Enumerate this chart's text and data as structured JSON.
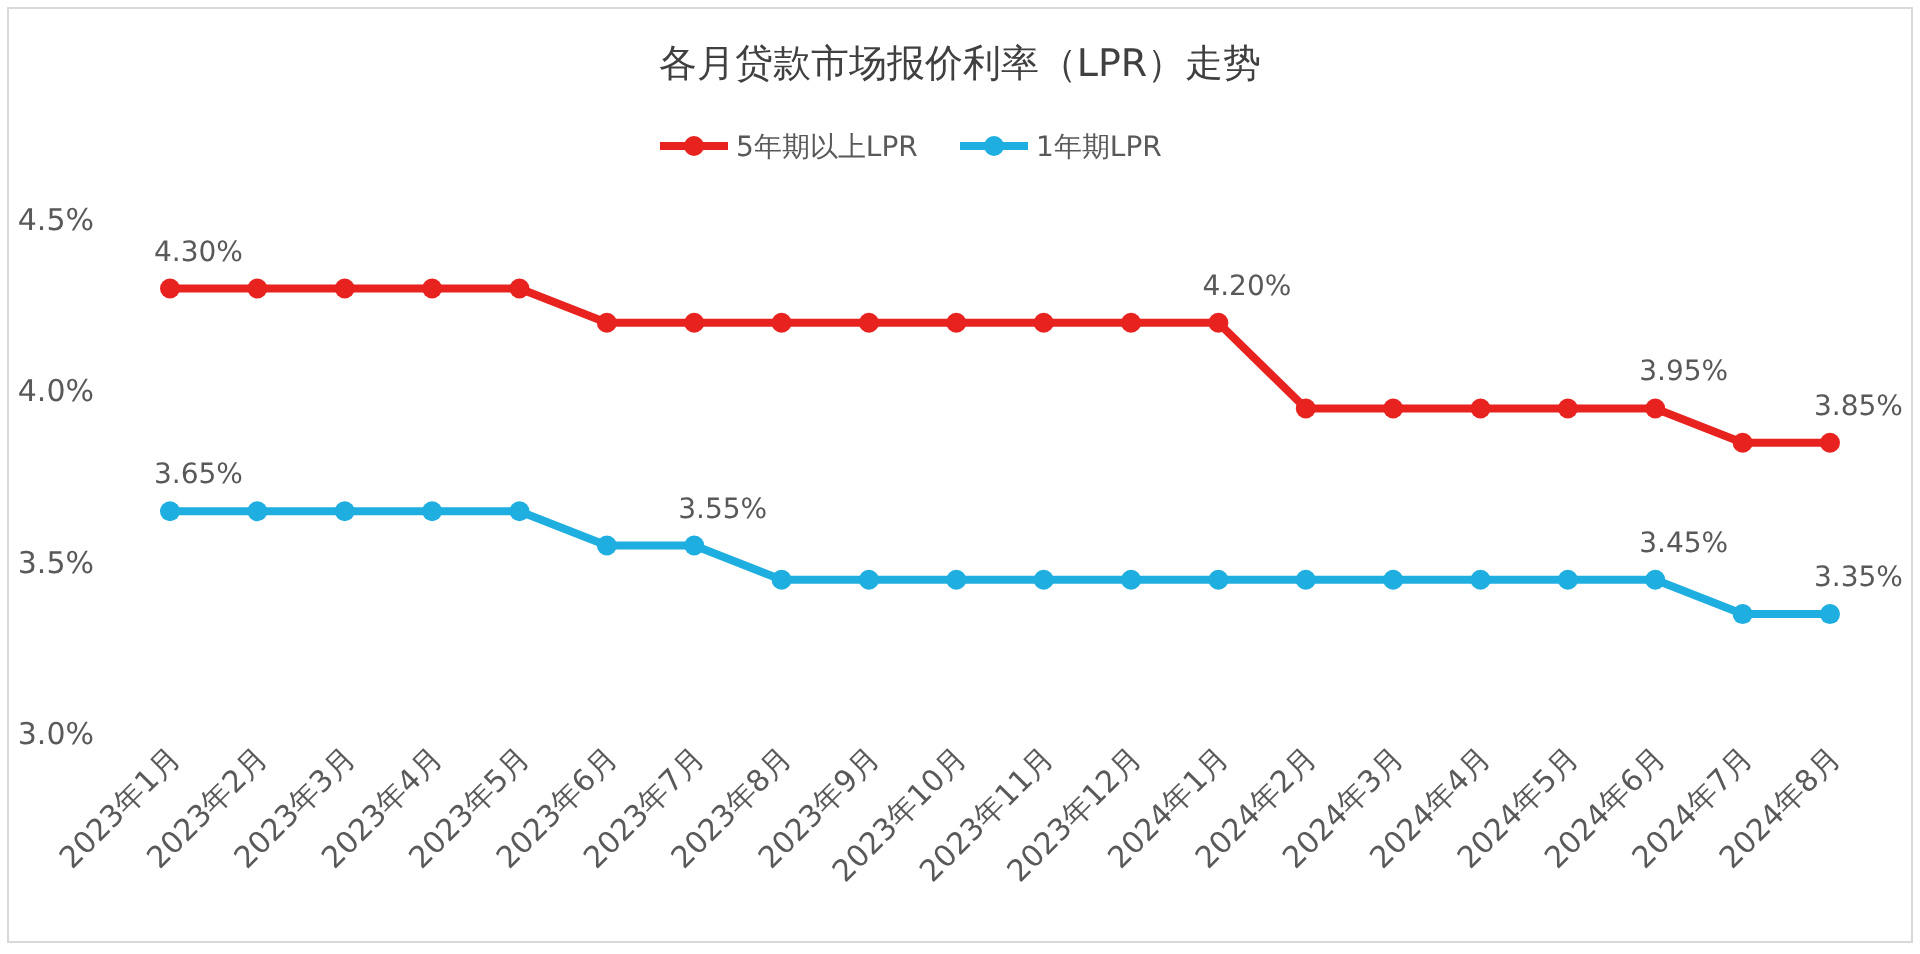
{
  "chart_data": {
    "type": "line",
    "title": "各月贷款市场报价利率（LPR）走势",
    "categories": [
      "2023年1月",
      "2023年2月",
      "2023年3月",
      "2023年4月",
      "2023年5月",
      "2023年6月",
      "2023年7月",
      "2023年8月",
      "2023年9月",
      "2023年10月",
      "2023年11月",
      "2023年12月",
      "2024年1月",
      "2024年2月",
      "2024年3月",
      "2024年4月",
      "2024年5月",
      "2024年6月",
      "2024年7月",
      "2024年8月"
    ],
    "series": [
      {
        "name": "5年期以上LPR",
        "color": "#e8231f",
        "values": [
          4.3,
          4.3,
          4.3,
          4.3,
          4.3,
          4.2,
          4.2,
          4.2,
          4.2,
          4.2,
          4.2,
          4.2,
          4.2,
          3.95,
          3.95,
          3.95,
          3.95,
          3.95,
          3.85,
          3.85
        ],
        "value_labels": [
          "4.30%",
          null,
          null,
          null,
          null,
          null,
          null,
          null,
          null,
          null,
          null,
          null,
          "4.20%",
          null,
          null,
          null,
          null,
          "3.95%",
          null,
          "3.85%"
        ]
      },
      {
        "name": "1年期LPR",
        "color": "#1eaee0",
        "values": [
          3.65,
          3.65,
          3.65,
          3.65,
          3.65,
          3.55,
          3.55,
          3.45,
          3.45,
          3.45,
          3.45,
          3.45,
          3.45,
          3.45,
          3.45,
          3.45,
          3.45,
          3.45,
          3.35,
          3.35
        ],
        "value_labels": [
          "3.65%",
          null,
          null,
          null,
          null,
          null,
          "3.55%",
          null,
          null,
          null,
          null,
          null,
          null,
          null,
          null,
          null,
          null,
          "3.45%",
          null,
          "3.35%"
        ]
      }
    ],
    "ylim": [
      3.0,
      4.5
    ],
    "yticks": [
      {
        "value": 3.0,
        "label": "3.0%"
      },
      {
        "value": 3.5,
        "label": "3.5%"
      },
      {
        "value": 4.0,
        "label": "4.0%"
      },
      {
        "value": 4.5,
        "label": "4.5%"
      }
    ],
    "grid": false,
    "legend": "top",
    "marker": "circle",
    "line_style": "solid"
  }
}
